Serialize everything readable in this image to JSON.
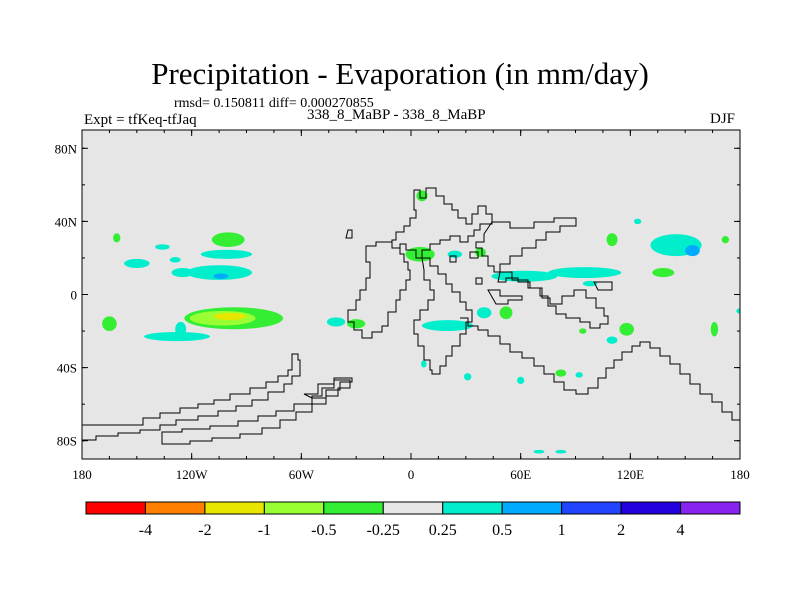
{
  "title": "Precipitation - Evaporation (in mm/day)",
  "stats_text": "rmsd= 0.150811 diff= 0.000270855",
  "left_label": "Expt = tfKeq-tfJaq",
  "center_label": "338_8_MaBP - 338_8_MaBP",
  "right_label": "DJF",
  "chart_data": {
    "type": "heatmap",
    "projection": "cylindrical equidistant",
    "xlim": [
      -180,
      180
    ],
    "ylim": [
      -90,
      90
    ],
    "x_ticks": [
      {
        "value": -180,
        "label": "180"
      },
      {
        "value": -120,
        "label": "120W"
      },
      {
        "value": -60,
        "label": "60W"
      },
      {
        "value": 0,
        "label": "0"
      },
      {
        "value": 60,
        "label": "60E"
      },
      {
        "value": 120,
        "label": "120E"
      },
      {
        "value": 180,
        "label": "180"
      }
    ],
    "y_ticks": [
      {
        "value": 80,
        "label": "80N"
      },
      {
        "value": 40,
        "label": "40N"
      },
      {
        "value": 0,
        "label": "0"
      },
      {
        "value": -40,
        "label": "40S"
      },
      {
        "value": -80,
        "label": "80S"
      }
    ],
    "background_color": "#e6e6e6",
    "colorbar": {
      "colors": [
        "#ff0000",
        "#ff8000",
        "#e6e600",
        "#99ff33",
        "#33ee33",
        "#e6e6e6",
        "#00eecc",
        "#00aaff",
        "#2244ff",
        "#2200dd",
        "#8822ee"
      ],
      "labels": [
        "-4",
        "-2",
        "-1",
        "-0.5",
        "-0.25",
        "0.25",
        "0.5",
        "1",
        "2",
        "4"
      ]
    },
    "anomaly_regions": [
      {
        "lon": -161,
        "lat": 31,
        "rx": 2,
        "ry": 2.5,
        "color": "#33ee33"
      },
      {
        "lon": -150,
        "lat": 17,
        "rx": 7,
        "ry": 2.5,
        "color": "#00eecc"
      },
      {
        "lon": -129,
        "lat": 19,
        "rx": 3,
        "ry": 1.5,
        "color": "#00eecc"
      },
      {
        "lon": -100,
        "lat": 30,
        "rx": 9,
        "ry": 4,
        "color": "#33ee33"
      },
      {
        "lon": -105,
        "lat": 12,
        "rx": 18,
        "ry": 4,
        "color": "#00eecc"
      },
      {
        "lon": -125,
        "lat": 12,
        "rx": 6,
        "ry": 2.5,
        "color": "#00eecc"
      },
      {
        "lon": -104,
        "lat": 10,
        "rx": 4,
        "ry": 1.5,
        "color": "#00aaff"
      },
      {
        "lon": -101,
        "lat": 22,
        "rx": 14,
        "ry": 2.5,
        "color": "#00eecc"
      },
      {
        "lon": -136,
        "lat": 26,
        "rx": 4,
        "ry": 1.5,
        "color": "#00eecc"
      },
      {
        "lon": -97,
        "lat": -13,
        "rx": 27,
        "ry": 6,
        "color": "#33ee33"
      },
      {
        "lon": -103,
        "lat": -13,
        "rx": 18,
        "ry": 4,
        "color": "#99ff33"
      },
      {
        "lon": -99,
        "lat": -12,
        "rx": 9,
        "ry": 2,
        "color": "#e6e600"
      },
      {
        "lon": -128,
        "lat": -23,
        "rx": 18,
        "ry": 2.5,
        "color": "#00eecc"
      },
      {
        "lon": -126,
        "lat": -19,
        "rx": 3,
        "ry": 4,
        "color": "#00eecc"
      },
      {
        "lon": -165,
        "lat": -16,
        "rx": 4,
        "ry": 4,
        "color": "#33ee33"
      },
      {
        "lon": -41,
        "lat": -15,
        "rx": 5,
        "ry": 2.5,
        "color": "#00eecc"
      },
      {
        "lon": -30,
        "lat": -16,
        "rx": 5,
        "ry": 2.5,
        "color": "#33ee33"
      },
      {
        "lon": 20,
        "lat": -17,
        "rx": 14,
        "ry": 3,
        "color": "#00eecc"
      },
      {
        "lon": 40,
        "lat": -10,
        "rx": 4,
        "ry": 3,
        "color": "#00eecc"
      },
      {
        "lon": 52,
        "lat": -10,
        "rx": 3.5,
        "ry": 3.5,
        "color": "#33ee33"
      },
      {
        "lon": 5,
        "lat": 22,
        "rx": 8,
        "ry": 4,
        "color": "#33ee33"
      },
      {
        "lon": 24,
        "lat": 22,
        "rx": 4,
        "ry": 2,
        "color": "#00eecc"
      },
      {
        "lon": 38,
        "lat": 23,
        "rx": 3,
        "ry": 2.5,
        "color": "#33ee33"
      },
      {
        "lon": 62,
        "lat": 10,
        "rx": 18,
        "ry": 3,
        "color": "#00eecc"
      },
      {
        "lon": 95,
        "lat": 12,
        "rx": 20,
        "ry": 3,
        "color": "#00eecc"
      },
      {
        "lon": 138,
        "lat": 12,
        "rx": 6,
        "ry": 2.5,
        "color": "#33ee33"
      },
      {
        "lon": 145,
        "lat": 27,
        "rx": 14,
        "ry": 6,
        "color": "#00eecc"
      },
      {
        "lon": 154,
        "lat": 24,
        "rx": 4,
        "ry": 3,
        "color": "#00aaff"
      },
      {
        "lon": 110,
        "lat": 30,
        "rx": 3,
        "ry": 3.5,
        "color": "#33ee33"
      },
      {
        "lon": 124,
        "lat": 40,
        "rx": 2,
        "ry": 1.5,
        "color": "#00eecc"
      },
      {
        "lon": 172,
        "lat": 30,
        "rx": 2,
        "ry": 2,
        "color": "#33ee33"
      },
      {
        "lon": 6,
        "lat": 54,
        "rx": 3,
        "ry": 3,
        "color": "#33ee33"
      },
      {
        "lon": 118,
        "lat": -19,
        "rx": 4,
        "ry": 3.5,
        "color": "#33ee33"
      },
      {
        "lon": 110,
        "lat": -25,
        "rx": 3,
        "ry": 2,
        "color": "#00eecc"
      },
      {
        "lon": 94,
        "lat": -20,
        "rx": 2,
        "ry": 1.5,
        "color": "#33ee33"
      },
      {
        "lon": 166,
        "lat": -19,
        "rx": 2,
        "ry": 4,
        "color": "#33ee33"
      },
      {
        "lon": 180,
        "lat": -9,
        "rx": 2,
        "ry": 1.5,
        "color": "#00eecc"
      },
      {
        "lon": 82,
        "lat": -43,
        "rx": 3,
        "ry": 2,
        "color": "#33ee33"
      },
      {
        "lon": 92,
        "lat": -44,
        "rx": 2,
        "ry": 1.5,
        "color": "#00eecc"
      },
      {
        "lon": 31,
        "lat": -45,
        "rx": 2,
        "ry": 2,
        "color": "#00eecc"
      },
      {
        "lon": 60,
        "lat": -47,
        "rx": 2,
        "ry": 2,
        "color": "#00eecc"
      },
      {
        "lon": 7,
        "lat": -38,
        "rx": 1.5,
        "ry": 2,
        "color": "#00eecc"
      },
      {
        "lon": 70,
        "lat": -86,
        "rx": 3,
        "ry": 1,
        "color": "#00eecc"
      },
      {
        "lon": 82,
        "lat": -86,
        "rx": 3,
        "ry": 1,
        "color": "#00eecc"
      },
      {
        "lon": 98,
        "lat": 6,
        "rx": 4,
        "ry": 1.5,
        "color": "#00eecc"
      }
    ]
  }
}
